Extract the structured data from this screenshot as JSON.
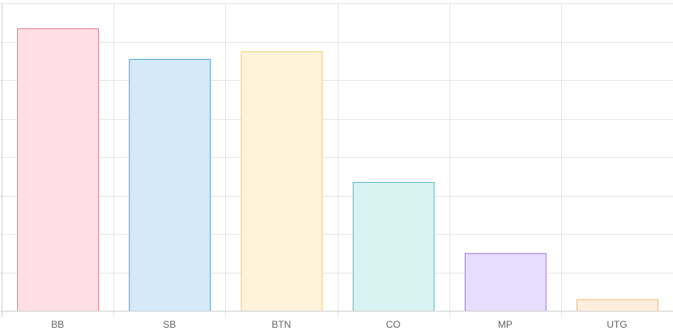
{
  "chart_data": {
    "type": "bar",
    "title": "",
    "xlabel": "",
    "ylabel": "",
    "categories": [
      "BB",
      "SB",
      "BTN",
      "CO",
      "MP",
      "UTG"
    ],
    "values": [
      7.35,
      6.55,
      6.75,
      3.35,
      1.5,
      0.3
    ],
    "ylim": [
      0,
      8
    ],
    "grid": true,
    "legend": "none",
    "colors": {
      "fills": [
        "#ffdfe5",
        "#d4eaf8",
        "#fff3dc",
        "#d9f2f2",
        "#e7ddfc",
        "#ffeedd"
      ],
      "strokes": [
        "#ea7f94",
        "#4aa2e0",
        "#f5cf6e",
        "#58bebe",
        "#9f79ee",
        "#f8b36d"
      ],
      "grid": "#e6e6e6",
      "axis": "#d0d0d0",
      "tick_text": "#666666"
    }
  }
}
